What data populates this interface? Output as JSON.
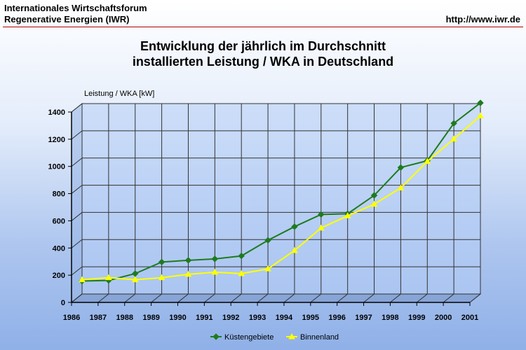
{
  "header": {
    "org_line1": "Internationales Wirtschaftsforum",
    "org_line2": "Regenerative Energien (IWR)",
    "url": "http://www.iwr.de"
  },
  "chart_data": {
    "type": "line",
    "title": "Entwicklung der jährlich im Durchschnitt",
    "title_line2": "installierten Leistung / WKA in Deutschland",
    "ylabel": "Leistung / WKA [kW]",
    "xlabel": "",
    "ylim": [
      0,
      1400
    ],
    "y_ticks": [
      0,
      200,
      400,
      600,
      800,
      1000,
      1200,
      1400
    ],
    "x_ticks": [
      "1986",
      "1987",
      "1988",
      "1989",
      "1990",
      "1991",
      "1992",
      "1993",
      "1994",
      "1995",
      "1996",
      "1997",
      "1998",
      "1999",
      "2000",
      "2001"
    ],
    "categories": [
      "1986",
      "1987",
      "1988",
      "1989",
      "1990",
      "1991",
      "1992",
      "1993",
      "1994",
      "1995",
      "1996",
      "1997",
      "1998",
      "1999",
      "2000",
      "2001"
    ],
    "series": [
      {
        "name": "Küstengebiete",
        "color": "#1e7b1e",
        "marker": "diamond",
        "values": [
          95,
          100,
          150,
          235,
          248,
          258,
          280,
          395,
          495,
          585,
          590,
          725,
          930,
          980,
          1255,
          1405
        ]
      },
      {
        "name": "Binnenland",
        "color": "#ffff00",
        "marker": "triangle",
        "values": [
          105,
          120,
          105,
          120,
          145,
          160,
          150,
          185,
          320,
          485,
          575,
          660,
          780,
          975,
          1140,
          1310
        ]
      }
    ],
    "grid": true,
    "legend_position": "bottom"
  }
}
